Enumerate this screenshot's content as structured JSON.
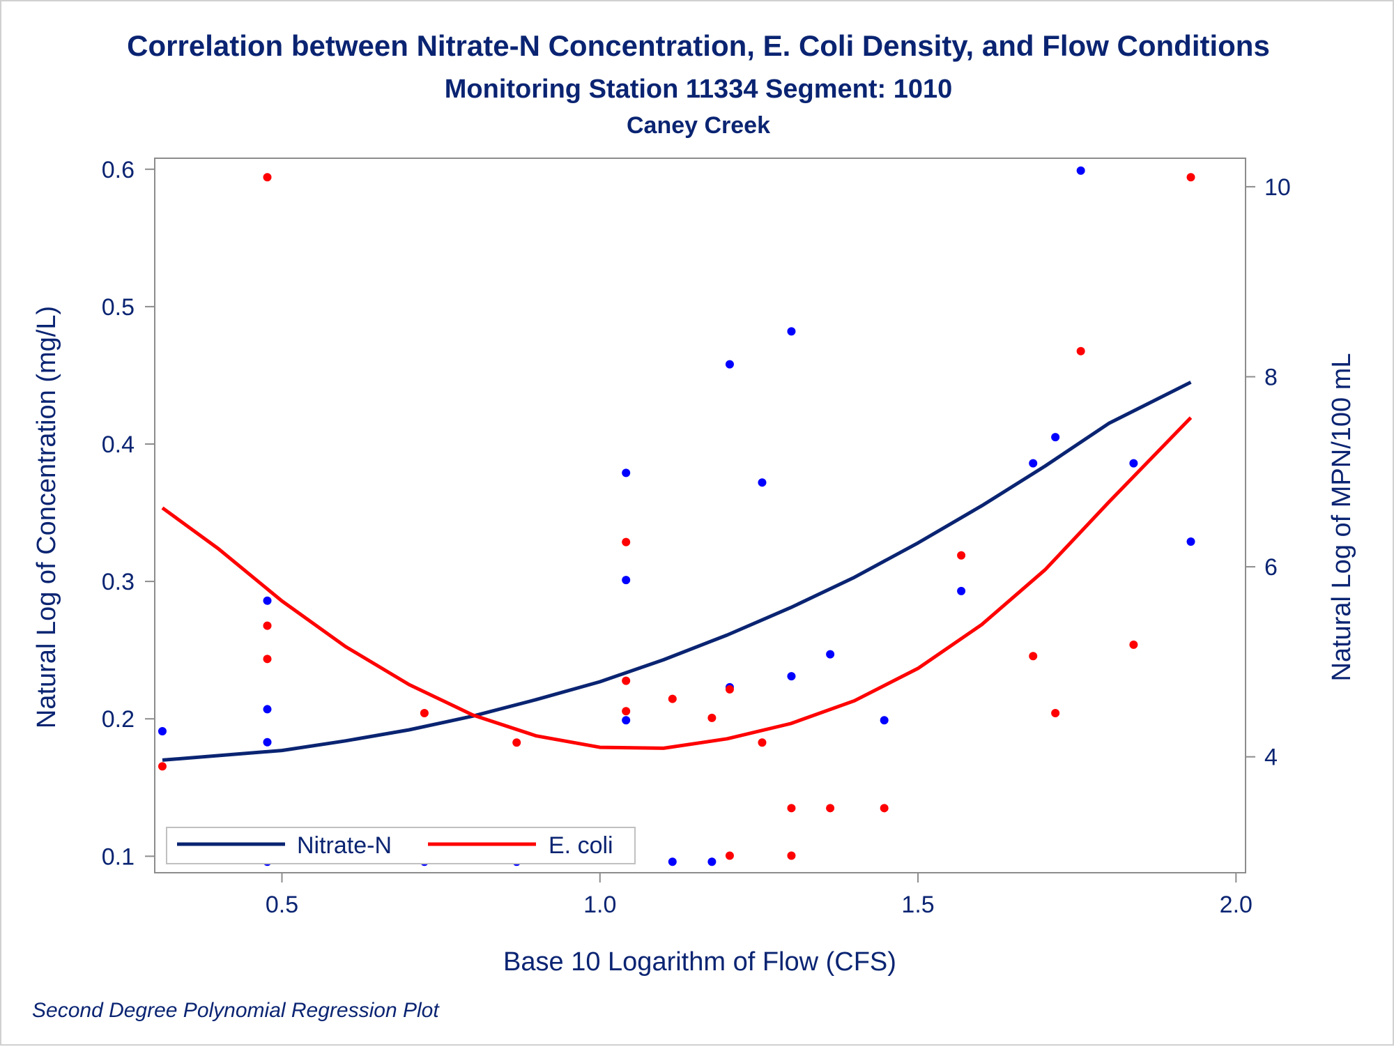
{
  "chart_data": {
    "type": "scatter",
    "title": "Correlation between Nitrate-N Concentration, E. Coli Density, and Flow Conditions",
    "subtitle": "Monitoring Station 11334 Segment: 1010",
    "subtitle2": "Caney Creek",
    "xlabel": "Base 10 Logarithm of Flow (CFS)",
    "ylabel": "Natural Log of Concentration (mg/L)",
    "y2label": "Natural Log of MPN/100 mL",
    "footnote": "Second Degree Polynomial Regression Plot",
    "xlim": [
      0.3,
      2.015
    ],
    "ylim": [
      0.088,
      0.608
    ],
    "y2lim": [
      2.78,
      10.3
    ],
    "xticks": [
      0.5,
      1.0,
      1.5,
      2.0
    ],
    "xtick_labels": [
      "0.5",
      "1.0",
      "1.5",
      "2.0"
    ],
    "yticks": [
      0.1,
      0.2,
      0.3,
      0.4,
      0.5,
      0.6
    ],
    "ytick_labels": [
      "0.1",
      "0.2",
      "0.3",
      "0.4",
      "0.5",
      "0.6"
    ],
    "y2ticks": [
      4,
      6,
      8,
      10
    ],
    "y2tick_labels": [
      "4",
      "6",
      "8",
      "10"
    ],
    "grid": false,
    "legend_position": "bottom-left",
    "series": [
      {
        "name": "Nitrate-N",
        "axis": "left",
        "color": "#0a2472",
        "point_color": "#0000ff",
        "points": [
          [
            0.312,
            0.191
          ],
          [
            0.477,
            0.286
          ],
          [
            0.477,
            0.207
          ],
          [
            0.477,
            0.183
          ],
          [
            0.477,
            0.096
          ],
          [
            0.724,
            0.096
          ],
          [
            0.869,
            0.096
          ],
          [
            1.041,
            0.379
          ],
          [
            1.041,
            0.301
          ],
          [
            1.041,
            0.199
          ],
          [
            1.114,
            0.096
          ],
          [
            1.176,
            0.096
          ],
          [
            1.204,
            0.458
          ],
          [
            1.204,
            0.223
          ],
          [
            1.255,
            0.372
          ],
          [
            1.301,
            0.482
          ],
          [
            1.301,
            0.231
          ],
          [
            1.362,
            0.247
          ],
          [
            1.447,
            0.199
          ],
          [
            1.568,
            0.293
          ],
          [
            1.681,
            0.386
          ],
          [
            1.716,
            0.405
          ],
          [
            1.756,
            0.599
          ],
          [
            1.839,
            0.386
          ],
          [
            1.929,
            0.329
          ]
        ],
        "fit": [
          [
            0.312,
            0.17
          ],
          [
            0.5,
            0.177
          ],
          [
            0.6,
            0.184
          ],
          [
            0.7,
            0.192
          ],
          [
            0.8,
            0.202
          ],
          [
            0.9,
            0.214
          ],
          [
            1.0,
            0.227
          ],
          [
            1.1,
            0.243
          ],
          [
            1.2,
            0.261
          ],
          [
            1.3,
            0.281
          ],
          [
            1.4,
            0.303
          ],
          [
            1.5,
            0.328
          ],
          [
            1.6,
            0.355
          ],
          [
            1.7,
            0.384
          ],
          [
            1.8,
            0.415
          ],
          [
            1.929,
            0.445
          ]
        ]
      },
      {
        "name": "E. coli",
        "axis": "right",
        "color": "#ff0000",
        "point_color": "#ff0000",
        "points": [
          [
            0.312,
            3.9
          ],
          [
            0.477,
            10.1
          ],
          [
            0.477,
            5.38
          ],
          [
            0.477,
            5.03
          ],
          [
            0.724,
            4.46
          ],
          [
            0.869,
            4.15
          ],
          [
            1.041,
            6.26
          ],
          [
            1.041,
            4.8
          ],
          [
            1.041,
            4.48
          ],
          [
            1.114,
            4.61
          ],
          [
            1.176,
            4.41
          ],
          [
            1.204,
            4.71
          ],
          [
            1.204,
            2.96
          ],
          [
            1.255,
            4.15
          ],
          [
            1.301,
            3.46
          ],
          [
            1.301,
            2.96
          ],
          [
            1.362,
            3.46
          ],
          [
            1.447,
            3.46
          ],
          [
            1.568,
            6.12
          ],
          [
            1.681,
            5.06
          ],
          [
            1.716,
            4.46
          ],
          [
            1.756,
            8.27
          ],
          [
            1.839,
            5.18
          ],
          [
            1.929,
            10.1
          ]
        ],
        "fit": [
          [
            0.312,
            6.62
          ],
          [
            0.4,
            6.19
          ],
          [
            0.5,
            5.64
          ],
          [
            0.6,
            5.16
          ],
          [
            0.7,
            4.76
          ],
          [
            0.8,
            4.44
          ],
          [
            0.9,
            4.22
          ],
          [
            1.0,
            4.1
          ],
          [
            1.1,
            4.09
          ],
          [
            1.2,
            4.19
          ],
          [
            1.3,
            4.35
          ],
          [
            1.4,
            4.59
          ],
          [
            1.5,
            4.93
          ],
          [
            1.6,
            5.39
          ],
          [
            1.7,
            5.97
          ],
          [
            1.8,
            6.68
          ],
          [
            1.929,
            7.57
          ]
        ]
      }
    ]
  }
}
